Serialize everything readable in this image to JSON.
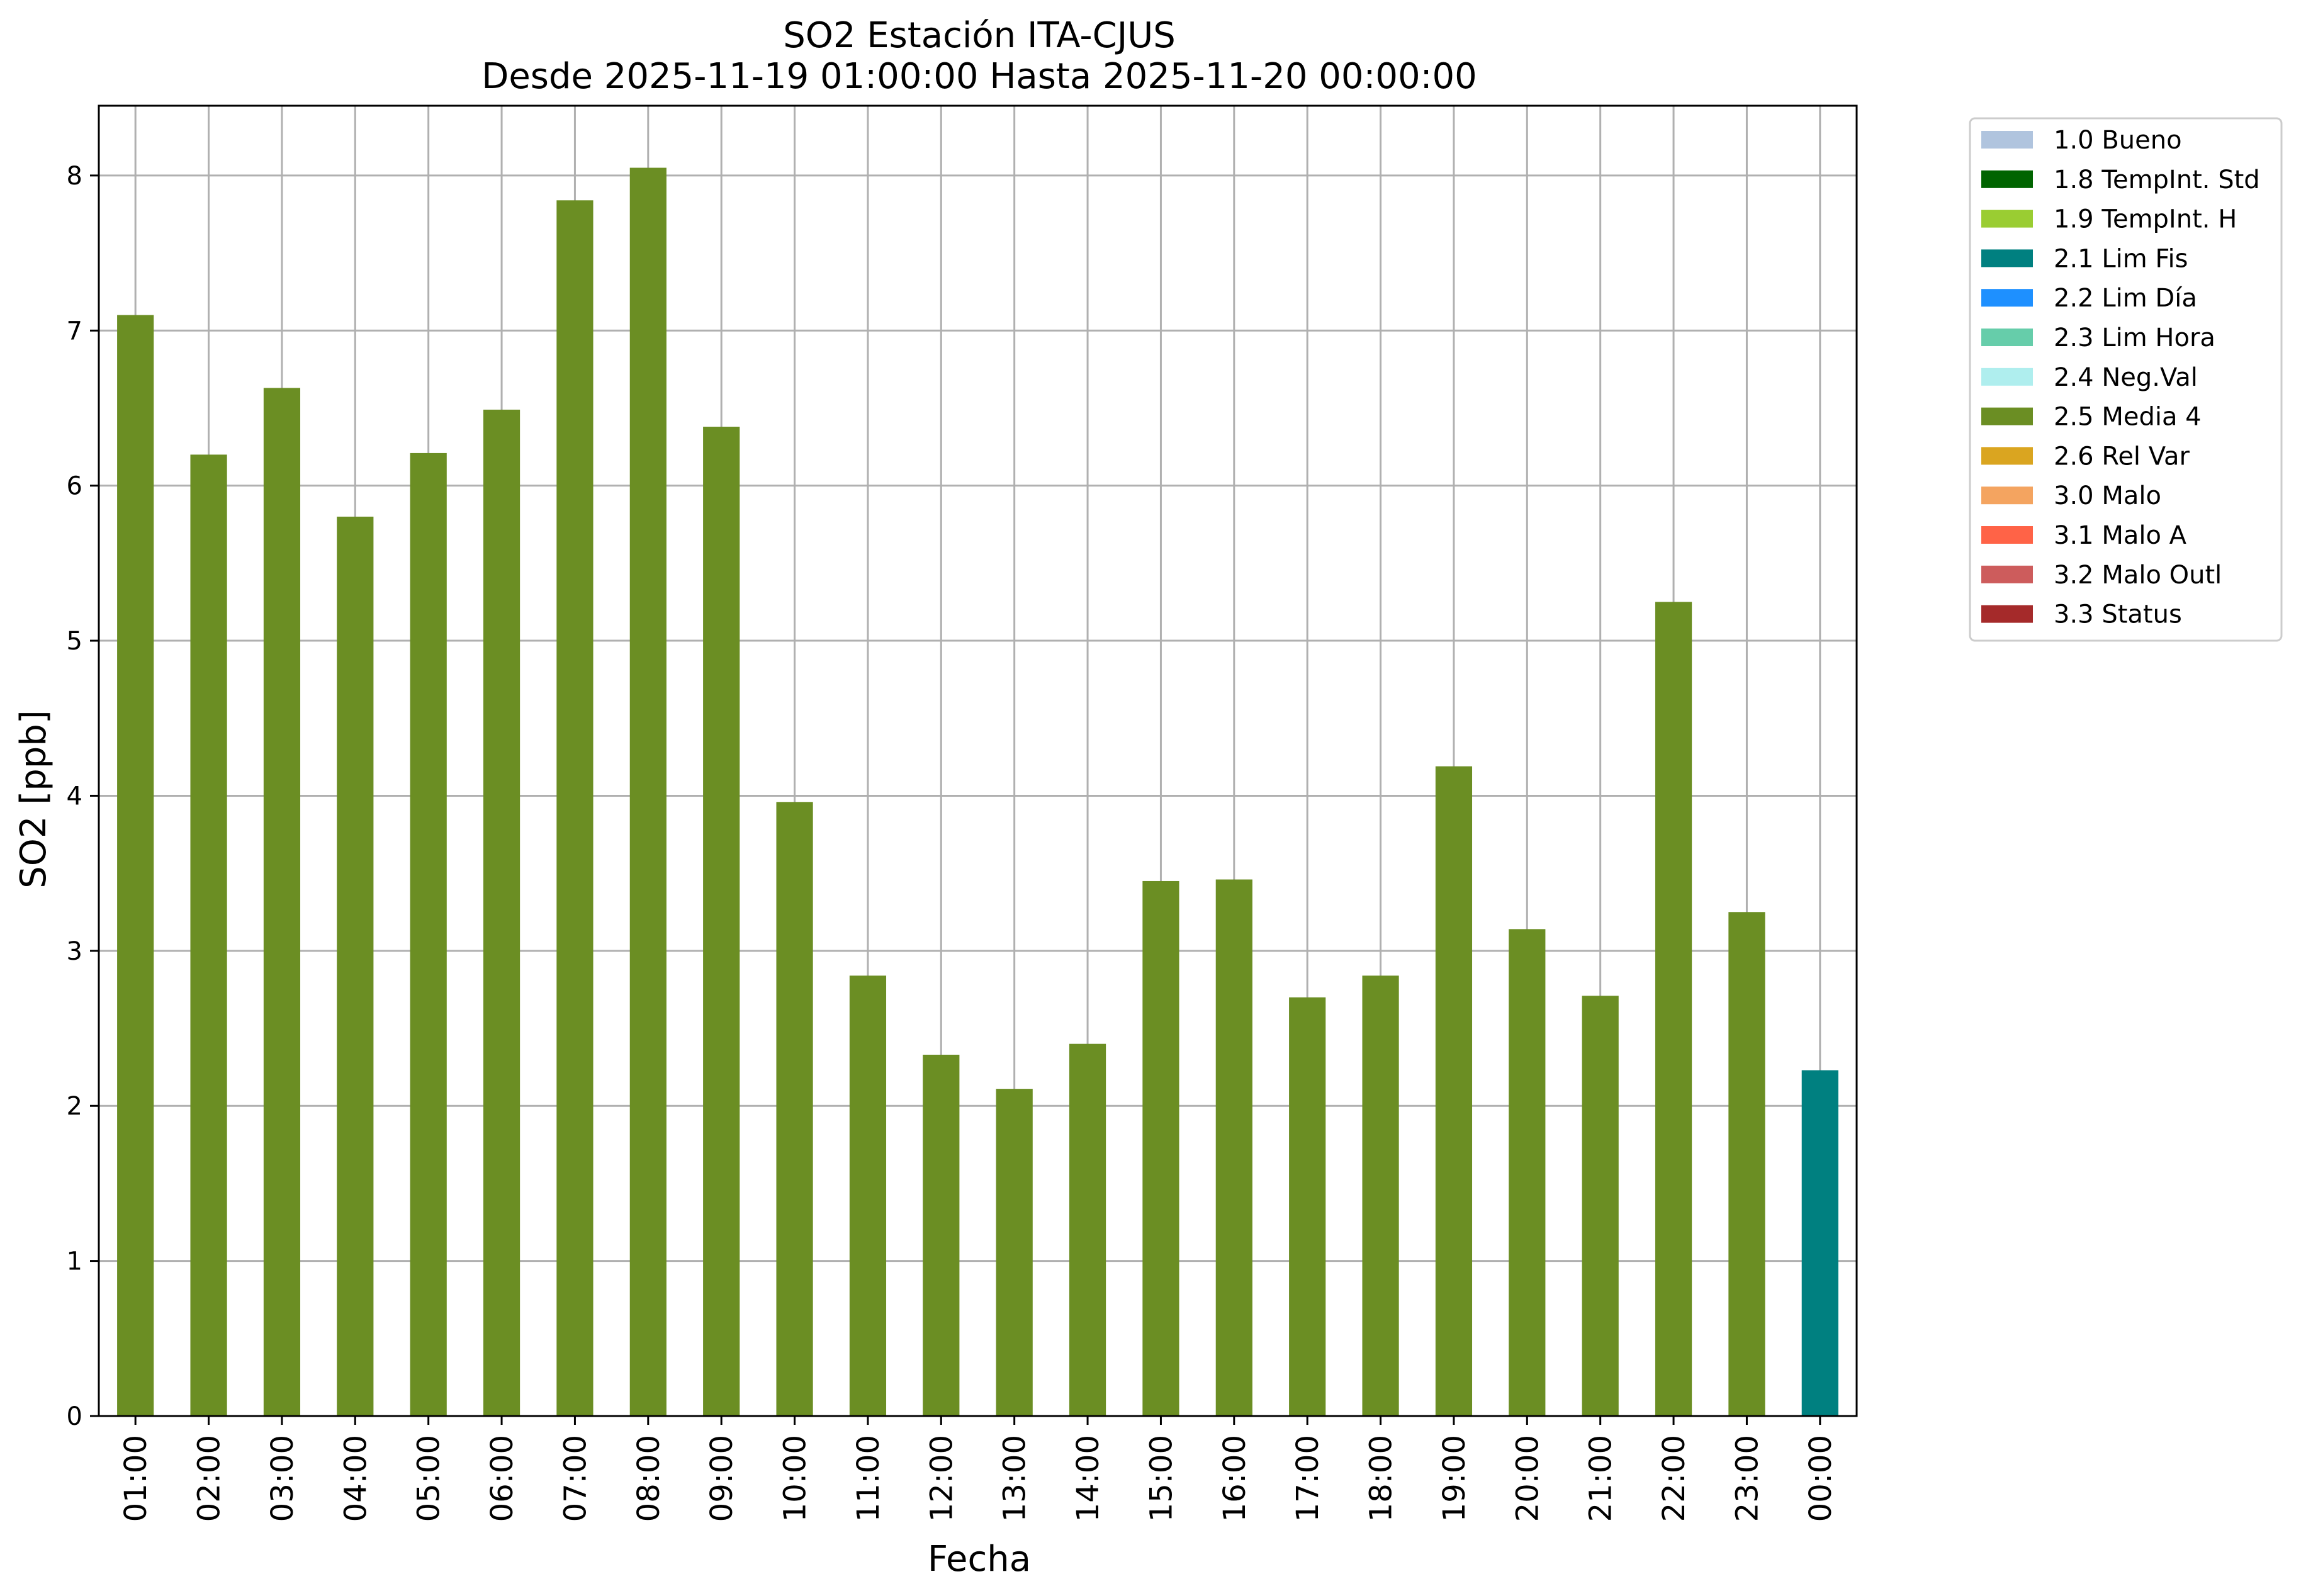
{
  "chart_data": {
    "type": "bar",
    "title": "SO2 Estación ITA-CJUS",
    "subtitle": "Desde 2025-11-19 01:00:00 Hasta 2025-11-20 00:00:00",
    "xlabel": "Fecha",
    "ylabel": "SO2 [ppb]",
    "ylim": [
      0,
      8.45
    ],
    "yticks": [
      "0",
      "1",
      "2",
      "3",
      "4",
      "5",
      "6",
      "7",
      "8"
    ],
    "grid": true,
    "legend_position": "outside-top-right",
    "categories": [
      "01:00",
      "02:00",
      "03:00",
      "04:00",
      "05:00",
      "06:00",
      "07:00",
      "08:00",
      "09:00",
      "10:00",
      "11:00",
      "12:00",
      "13:00",
      "14:00",
      "15:00",
      "16:00",
      "17:00",
      "18:00",
      "19:00",
      "20:00",
      "21:00",
      "22:00",
      "23:00",
      "00:00"
    ],
    "values": [
      7.1,
      6.2,
      6.63,
      5.8,
      6.21,
      6.49,
      7.84,
      8.05,
      6.38,
      3.96,
      2.84,
      2.33,
      2.11,
      2.4,
      3.45,
      3.46,
      2.7,
      2.84,
      4.19,
      3.14,
      2.71,
      5.25,
      3.25,
      2.23
    ],
    "flags": [
      "2.5 Media 4",
      "2.5 Media 4",
      "2.5 Media 4",
      "2.5 Media 4",
      "2.5 Media 4",
      "2.5 Media 4",
      "2.5 Media 4",
      "2.5 Media 4",
      "2.5 Media 4",
      "2.5 Media 4",
      "2.5 Media 4",
      "2.5 Media 4",
      "2.5 Media 4",
      "2.5 Media 4",
      "2.5 Media 4",
      "2.5 Media 4",
      "2.5 Media 4",
      "2.5 Media 4",
      "2.5 Media 4",
      "2.5 Media 4",
      "2.5 Media 4",
      "2.5 Media 4",
      "2.5 Media 4",
      "2.1 Lim Fis"
    ],
    "legend": [
      {
        "label": "1.0 Bueno",
        "color": "#b0c4de"
      },
      {
        "label": "1.8 TempInt. Std",
        "color": "#006400"
      },
      {
        "label": "1.9 TempInt. H",
        "color": "#9acd32"
      },
      {
        "label": "2.1 Lim Fis",
        "color": "#008080"
      },
      {
        "label": "2.2 Lim Día",
        "color": "#1e90ff"
      },
      {
        "label": "2.3 Lim Hora",
        "color": "#66cdaa"
      },
      {
        "label": "2.4 Neg.Val",
        "color": "#afeeee"
      },
      {
        "label": "2.5 Media 4",
        "color": "#6b8e23"
      },
      {
        "label": "2.6 Rel Var",
        "color": "#daa520"
      },
      {
        "label": "3.0 Malo",
        "color": "#f4a460"
      },
      {
        "label": "3.1 Malo A",
        "color": "#ff6347"
      },
      {
        "label": "3.2 Malo Outl",
        "color": "#cd5c5c"
      },
      {
        "label": "3.3 Status",
        "color": "#a52a2a"
      }
    ]
  }
}
